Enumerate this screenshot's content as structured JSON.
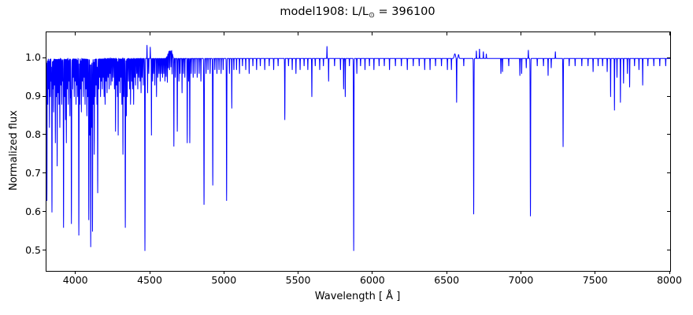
{
  "figure": {
    "title_prefix": "model1908: L/L",
    "title_sub": "⊙",
    "title_suffix": " = 396100"
  },
  "chart_data": {
    "type": "line",
    "title": "model1908: L/L⊙ = 396100",
    "xlabel": "Wavelength [ Å ]",
    "ylabel": "Normalized flux",
    "xlim": [
      3800,
      8000
    ],
    "ylim": [
      0.448,
      1.068
    ],
    "xticks": [
      4000,
      4500,
      5000,
      5500,
      6000,
      6500,
      7000,
      7500,
      8000
    ],
    "xtick_labels": [
      "4000",
      "4500",
      "5000",
      "5500",
      "6000",
      "6500",
      "7000",
      "7500",
      "8000"
    ],
    "yticks": [
      0.5,
      0.6,
      0.7,
      0.8,
      0.9,
      1.0
    ],
    "ytick_labels": [
      "0.5",
      "0.6",
      "0.7",
      "0.8",
      "0.9",
      "1.0"
    ],
    "grid": false,
    "legend": "none",
    "line_color": "#0000ff",
    "line_width": 1,
    "continuum_level": 1.0,
    "sample_step_angstrom": 0.5,
    "absorption_lines": [
      [
        3803,
        0.37,
        1.6
      ],
      [
        3809,
        0.12
      ],
      [
        3815,
        0.08
      ],
      [
        3820,
        0.18
      ],
      [
        3826,
        0.1
      ],
      [
        3832,
        0.06
      ],
      [
        3837,
        0.4,
        1.7
      ],
      [
        3843,
        0.08
      ],
      [
        3848,
        0.14
      ],
      [
        3854,
        0.07
      ],
      [
        3860,
        0.22
      ],
      [
        3866,
        0.1
      ],
      [
        3872,
        0.28
      ],
      [
        3878,
        0.09
      ],
      [
        3884,
        0.12
      ],
      [
        3890,
        0.18
      ],
      [
        3897,
        0.07
      ],
      [
        3903,
        0.12
      ],
      [
        3908,
        0.06
      ],
      [
        3915,
        0.44,
        1.8
      ],
      [
        3922,
        0.1
      ],
      [
        3928,
        0.16
      ],
      [
        3934,
        0.22
      ],
      [
        3940,
        0.08
      ],
      [
        3947,
        0.12
      ],
      [
        3952,
        0.06
      ],
      [
        3958,
        0.15
      ],
      [
        3964,
        0.1
      ],
      [
        3968,
        0.43,
        1.8
      ],
      [
        3975,
        0.08
      ],
      [
        3981,
        0.05
      ],
      [
        3987,
        0.1
      ],
      [
        3993,
        0.06
      ],
      [
        3999,
        0.12
      ],
      [
        4005,
        0.07
      ],
      [
        4010,
        0.1
      ],
      [
        4018,
        0.46,
        1.8
      ],
      [
        4024,
        0.12
      ],
      [
        4030,
        0.08
      ],
      [
        4035,
        0.14
      ],
      [
        4042,
        0.06
      ],
      [
        4048,
        0.1
      ],
      [
        4054,
        0.05
      ],
      [
        4060,
        0.12
      ],
      [
        4066,
        0.08
      ],
      [
        4072,
        0.15
      ],
      [
        4078,
        0.1
      ],
      [
        4085,
        0.42,
        1.7
      ],
      [
        4092,
        0.2
      ],
      [
        4098,
        0.49,
        1.8
      ],
      [
        4104,
        0.18
      ],
      [
        4110,
        0.45,
        1.7
      ],
      [
        4117,
        0.12
      ],
      [
        4122,
        0.25
      ],
      [
        4128,
        0.1
      ],
      [
        4134,
        0.07
      ],
      [
        4140,
        0.12
      ],
      [
        4145,
        0.35,
        1.6
      ],
      [
        4152,
        0.08
      ],
      [
        4158,
        0.05
      ],
      [
        4164,
        0.1
      ],
      [
        4170,
        0.06
      ],
      [
        4176,
        0.08
      ],
      [
        4182,
        0.05
      ],
      [
        4188,
        0.1
      ],
      [
        4195,
        0.12
      ],
      [
        4202,
        0.06
      ],
      [
        4208,
        0.09
      ],
      [
        4215,
        0.05
      ],
      [
        4222,
        0.08
      ],
      [
        4228,
        0.04
      ],
      [
        4234,
        0.07
      ],
      [
        4242,
        0.06
      ],
      [
        4250,
        0.05
      ],
      [
        4258,
        0.08
      ],
      [
        4265,
        0.19
      ],
      [
        4272,
        0.07
      ],
      [
        4278,
        0.1
      ],
      [
        4283,
        0.2
      ],
      [
        4290,
        0.06
      ],
      [
        4296,
        0.09
      ],
      [
        4302,
        0.05
      ],
      [
        4308,
        0.12
      ],
      [
        4315,
        0.25
      ],
      [
        4322,
        0.1
      ],
      [
        4331,
        0.44,
        1.9
      ],
      [
        4338,
        0.15
      ],
      [
        4344,
        0.1
      ],
      [
        4352,
        0.06
      ],
      [
        4360,
        0.08
      ],
      [
        4366,
        0.12
      ],
      [
        4374,
        0.06
      ],
      [
        4380,
        0.08
      ],
      [
        4387,
        0.12
      ],
      [
        4394,
        0.05
      ],
      [
        4400,
        0.07
      ],
      [
        4408,
        0.04
      ],
      [
        4415,
        0.08
      ],
      [
        4422,
        0.05
      ],
      [
        4430,
        0.06
      ],
      [
        4437,
        0.09
      ],
      [
        4444,
        0.05
      ],
      [
        4452,
        0.07
      ],
      [
        4463,
        0.5,
        1.8
      ],
      [
        4481,
        0.09
      ],
      [
        4489,
        0.04
      ],
      [
        4507,
        0.2
      ],
      [
        4515,
        0.06
      ],
      [
        4522,
        0.04
      ],
      [
        4530,
        0.07
      ],
      [
        4541,
        0.1
      ],
      [
        4550,
        0.05
      ],
      [
        4558,
        0.04
      ],
      [
        4566,
        0.06
      ],
      [
        4574,
        0.04
      ],
      [
        4582,
        0.05
      ],
      [
        4590,
        0.04
      ],
      [
        4598,
        0.06
      ],
      [
        4606,
        0.05
      ],
      [
        4614,
        0.07
      ],
      [
        4621,
        0.04
      ],
      [
        4629,
        0.05
      ],
      [
        4638,
        0.04
      ],
      [
        4646,
        0.06
      ],
      [
        4658,
        0.23,
        1.5
      ],
      [
        4668,
        0.05
      ],
      [
        4681,
        0.19,
        1.5
      ],
      [
        4692,
        0.06
      ],
      [
        4700,
        0.04
      ],
      [
        4713,
        0.09
      ],
      [
        4722,
        0.04
      ],
      [
        4732,
        0.05
      ],
      [
        4748,
        0.22,
        1.5
      ],
      [
        4757,
        0.06
      ],
      [
        4765,
        0.22,
        1.5
      ],
      [
        4775,
        0.04
      ],
      [
        4788,
        0.05
      ],
      [
        4800,
        0.04
      ],
      [
        4815,
        0.05
      ],
      [
        4828,
        0.04
      ],
      [
        4840,
        0.06
      ],
      [
        4861,
        0.38,
        2.1
      ],
      [
        4875,
        0.04
      ],
      [
        4888,
        0.03
      ],
      [
        4902,
        0.04
      ],
      [
        4920,
        0.33,
        1.8
      ],
      [
        4934,
        0.03
      ],
      [
        4948,
        0.04
      ],
      [
        4962,
        0.03
      ],
      [
        4976,
        0.04
      ],
      [
        4990,
        0.03
      ],
      [
        5013,
        0.37,
        1.8
      ],
      [
        5032,
        0.04
      ],
      [
        5048,
        0.13
      ],
      [
        5062,
        0.03
      ],
      [
        5080,
        0.03
      ],
      [
        5100,
        0.04
      ],
      [
        5120,
        0.02
      ],
      [
        5142,
        0.03
      ],
      [
        5165,
        0.04
      ],
      [
        5190,
        0.02
      ],
      [
        5215,
        0.03
      ],
      [
        5240,
        0.02
      ],
      [
        5270,
        0.03
      ],
      [
        5300,
        0.02
      ],
      [
        5330,
        0.03
      ],
      [
        5360,
        0.02
      ],
      [
        5405,
        0.16,
        1.6
      ],
      [
        5430,
        0.02
      ],
      [
        5455,
        0.03
      ],
      [
        5480,
        0.04
      ],
      [
        5508,
        0.03
      ],
      [
        5535,
        0.02
      ],
      [
        5560,
        0.03
      ],
      [
        5587,
        0.1,
        1.5
      ],
      [
        5610,
        0.02
      ],
      [
        5640,
        0.03
      ],
      [
        5665,
        0.02
      ],
      [
        5700,
        0.06
      ],
      [
        5740,
        0.02
      ],
      [
        5780,
        0.03
      ],
      [
        5801,
        0.08
      ],
      [
        5812,
        0.1
      ],
      [
        5840,
        0.02
      ],
      [
        5869,
        0.5,
        1.9
      ],
      [
        5890,
        0.04
      ],
      [
        5915,
        0.02
      ],
      [
        5945,
        0.03
      ],
      [
        5975,
        0.02
      ],
      [
        6005,
        0.03
      ],
      [
        6040,
        0.02
      ],
      [
        6075,
        0.02
      ],
      [
        6110,
        0.03
      ],
      [
        6150,
        0.02
      ],
      [
        6190,
        0.02
      ],
      [
        6230,
        0.03
      ],
      [
        6270,
        0.02
      ],
      [
        6310,
        0.02
      ],
      [
        6347,
        0.03
      ],
      [
        6383,
        0.03
      ],
      [
        6420,
        0.02
      ],
      [
        6460,
        0.02
      ],
      [
        6500,
        0.03
      ],
      [
        6527,
        0.03
      ],
      [
        6562,
        0.115,
        1.6
      ],
      [
        6610,
        0.02
      ],
      [
        6677,
        0.405,
        1.9
      ],
      [
        6860,
        0.04
      ],
      [
        6871,
        0.035
      ],
      [
        6913,
        0.02
      ],
      [
        6988,
        0.045
      ],
      [
        7000,
        0.04
      ],
      [
        7031,
        0.025
      ],
      [
        7059,
        0.41,
        1.9
      ],
      [
        7105,
        0.02
      ],
      [
        7147,
        0.02
      ],
      [
        7178,
        0.045
      ],
      [
        7199,
        0.025
      ],
      [
        7279,
        0.23,
        1.7
      ],
      [
        7320,
        0.02
      ],
      [
        7360,
        0.02
      ],
      [
        7405,
        0.02
      ],
      [
        7447,
        0.02
      ],
      [
        7481,
        0.035
      ],
      [
        7515,
        0.02
      ],
      [
        7545,
        0.02
      ],
      [
        7576,
        0.035
      ],
      [
        7599,
        0.1
      ],
      [
        7625,
        0.135
      ],
      [
        7642,
        0.05
      ],
      [
        7665,
        0.115
      ],
      [
        7686,
        0.065
      ],
      [
        7712,
        0.04
      ],
      [
        7727,
        0.075
      ],
      [
        7760,
        0.02
      ],
      [
        7790,
        0.03
      ],
      [
        7815,
        0.07
      ],
      [
        7850,
        0.02
      ],
      [
        7890,
        0.02
      ],
      [
        7930,
        0.02
      ],
      [
        7970,
        0.02
      ]
    ],
    "emission_features": [
      [
        4477,
        0.035,
        1.3
      ],
      [
        4499,
        0.03,
        1.3
      ],
      [
        4630,
        0.02,
        16
      ],
      [
        4645,
        0.012,
        5
      ],
      [
        5689,
        0.032,
        1.4
      ],
      [
        6550,
        0.012,
        6
      ],
      [
        6575,
        0.01,
        4
      ],
      [
        6695,
        0.02,
        1.5
      ],
      [
        6716,
        0.025,
        1.5
      ],
      [
        6742,
        0.018,
        1.5
      ],
      [
        6762,
        0.012,
        1.5
      ],
      [
        7045,
        0.022,
        1.5
      ],
      [
        7227,
        0.018,
        1.5
      ]
    ]
  }
}
